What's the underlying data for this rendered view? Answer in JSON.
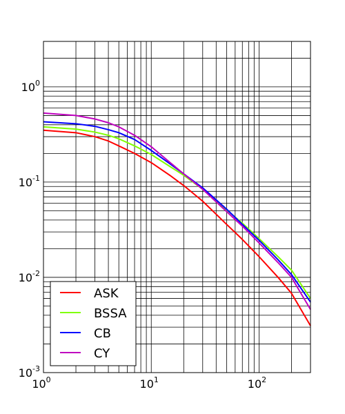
{
  "chart_data": {
    "type": "line",
    "title": "",
    "xlabel": "",
    "ylabel": "",
    "xscale": "log",
    "yscale": "log",
    "xlim": [
      1,
      300
    ],
    "ylim": [
      0.001,
      3
    ],
    "grid": "major-and-minor",
    "legend_position": "lower-left",
    "x_ticks": [
      {
        "value": 1,
        "base": "10",
        "exp": "0"
      },
      {
        "value": 10,
        "base": "10",
        "exp": "1"
      },
      {
        "value": 100,
        "base": "10",
        "exp": "2"
      }
    ],
    "y_ticks": [
      {
        "value": 1,
        "base": "10",
        "exp": "0"
      },
      {
        "value": 0.1,
        "base": "10",
        "exp": "-1"
      },
      {
        "value": 0.01,
        "base": "10",
        "exp": "-2"
      },
      {
        "value": 0.001,
        "base": "10",
        "exp": "-3"
      }
    ],
    "x": [
      1,
      2,
      3,
      4,
      5,
      7,
      10,
      15,
      20,
      30,
      50,
      70,
      100,
      150,
      200,
      300
    ],
    "series": [
      {
        "name": "ASK",
        "color": "#ff0000",
        "values": [
          0.35,
          0.33,
          0.3,
          0.27,
          0.24,
          0.2,
          0.16,
          0.117,
          0.092,
          0.063,
          0.036,
          0.025,
          0.0165,
          0.01,
          0.0068,
          0.0031
        ]
      },
      {
        "name": "BSSA",
        "color": "#80ff00",
        "values": [
          0.38,
          0.36,
          0.335,
          0.31,
          0.285,
          0.24,
          0.195,
          0.145,
          0.118,
          0.084,
          0.051,
          0.037,
          0.0255,
          0.0165,
          0.0119,
          0.006
        ]
      },
      {
        "name": "CB",
        "color": "#0000ff",
        "values": [
          0.43,
          0.41,
          0.385,
          0.355,
          0.33,
          0.28,
          0.215,
          0.155,
          0.122,
          0.087,
          0.052,
          0.036,
          0.0245,
          0.0153,
          0.0107,
          0.0055
        ]
      },
      {
        "name": "CY",
        "color": "#bf00bf",
        "values": [
          0.53,
          0.5,
          0.46,
          0.42,
          0.38,
          0.31,
          0.235,
          0.16,
          0.122,
          0.084,
          0.049,
          0.0345,
          0.023,
          0.0143,
          0.01,
          0.0046
        ]
      }
    ]
  }
}
